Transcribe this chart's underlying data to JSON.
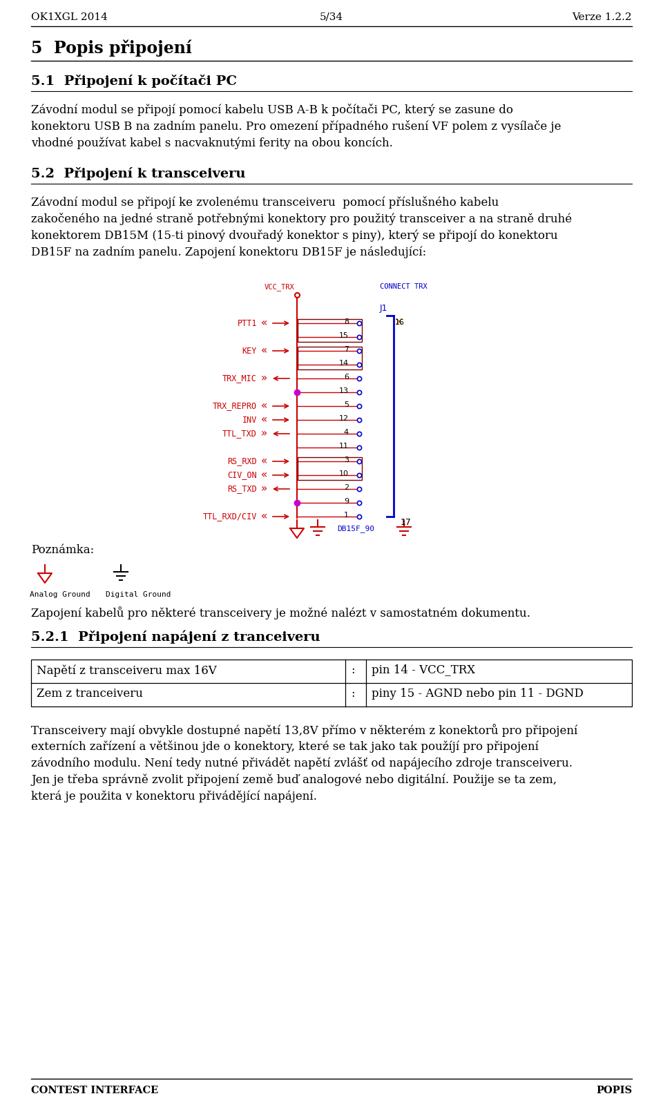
{
  "header_left": "OK1XGL 2014",
  "header_center": "5/34",
  "header_right": "Verze 1.2.2",
  "footer_left": "CONTEST INTERFACE",
  "footer_right": "POPIS",
  "section_title": "5  Popis připojení",
  "subsection_title": "5.1  Připojení k počítači PC",
  "para1_lines": [
    "Závodní modul se připojí pomocí kabelu USB A-B k počítači PC, který se zasune do",
    "konektoru USB B na zadním panelu. Pro omezení případného rušení VF polem z vysílače je",
    "vhodné používat kabel s nacvaknutými ferity na obou koncích."
  ],
  "subsection2_title": "5.2  Připojení k transceiveru",
  "para2_lines": [
    "Závodní modul se připojí ke zvolenému transceiveru  pomocí příslušného kabelu",
    "zakočeného na jedné straně potřebnými konektory pro použitý transceiver a na straně druhé",
    "konektorem DB15M (15-ti pinový dvouřadý konektor s piny), který se připojí do konektoru",
    "DB15F na zadním panelu. Zapojení konektoru DB15F je následující:"
  ],
  "note_label": "Poznámka:",
  "note_text1": "Analog Ground",
  "note_text2": "Digital Ground",
  "note_para": "Zapojení kabelů pro některé transceivery je možné nalézt v samostatném dokumentu.",
  "subsection3_title": "5.2.1  Připojení napájení z tranceiveru",
  "table_row1_left": "Napětí z transceiveru max 16V",
  "table_row1_sep": ":",
  "table_row1_right": "pin 14 - VCC_TRX",
  "table_row2_left": "Zem z tranceiveru",
  "table_row2_sep": ":",
  "table_row2_right": "piny 15 - AGND nebo pin 11 - DGND",
  "para3_lines": [
    "Transceivery mají obvykle dostupné napětí 13,8V přímo v některém z konektorů pro připojení",
    "externích zařízení a většinou jde o konektory, které se tak jako tak použíjí pro připojení",
    "závodního modulu. Není tedy nutné přivádět napětí zvlášť od napájecího zdroje transceiveru.",
    "Jen je třeba správně zvolit připojení země buď analogové nebo digitální. Použije se ta zem,",
    "která je použita v konektoru přivádějící napájení."
  ]
}
